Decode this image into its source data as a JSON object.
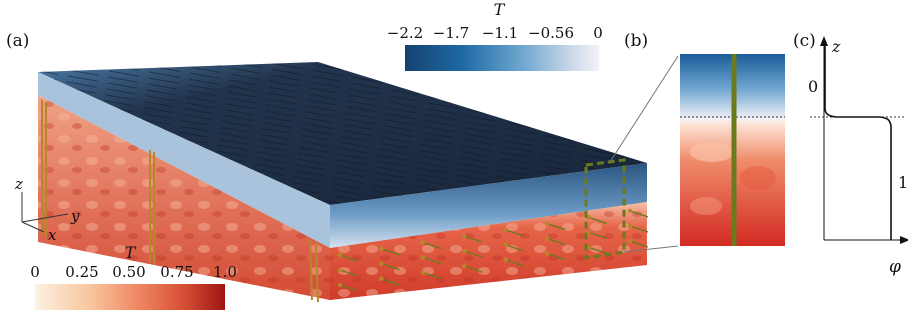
{
  "panels": {
    "a": {
      "label": "(a)"
    },
    "b": {
      "label": "(b)"
    },
    "c": {
      "label": "(c)"
    }
  },
  "colorbar_cold": {
    "title": "T",
    "ticks": [
      "−2.2",
      "−1.7",
      "−1.1",
      "−0.56",
      "0"
    ],
    "colors": [
      "#14426e",
      "#1f6aa5",
      "#6ea6cf",
      "#c9d6e8",
      "#f4f2f8"
    ]
  },
  "colorbar_warm": {
    "title": "T",
    "ticks": [
      "0",
      "0.25",
      "0.50",
      "0.75",
      "1.0"
    ],
    "colors": [
      "#fdf1e2",
      "#f7c49a",
      "#ef8563",
      "#d44a34",
      "#9e1414"
    ]
  },
  "axes3d": {
    "z": "z",
    "x": "x",
    "y": "y"
  },
  "profile": {
    "z_label": "z",
    "phi_label": "φ",
    "ticks": [
      "0",
      "1"
    ]
  },
  "colors": {
    "ice_top": "#1c2d44",
    "ice_mid": "#2f5f8a",
    "ice_light": "#b6cde4",
    "water_light": "#f2a58a",
    "water_deep": "#d1452f",
    "marker": "#6b7a1c",
    "arrow": "#b8862d"
  }
}
